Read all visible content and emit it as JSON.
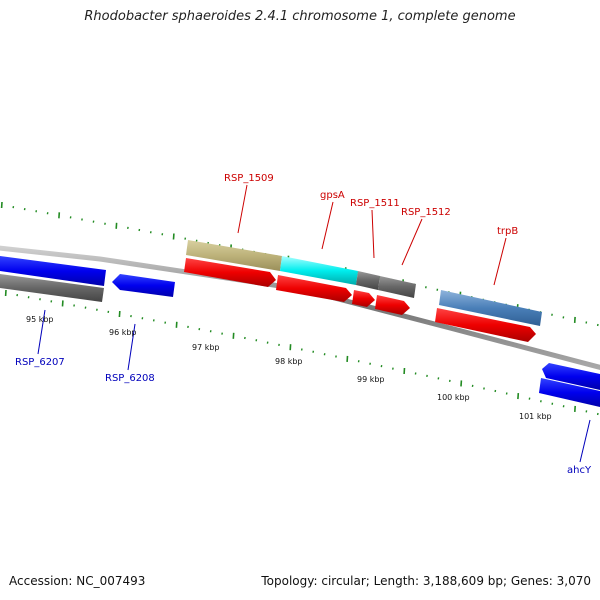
{
  "title": "Rhodobacter sphaeroides 2.4.1 chromosome 1, complete genome",
  "footer": {
    "accession": "Accession: NC_007493",
    "summary": "Topology: circular; Length: 3,188,609 bp; Genes: 3,070"
  },
  "colors": {
    "forward_arrow": "#ff0000",
    "reverse_arrow": "#0000ff",
    "backbone": "#888888",
    "tick": "#228b22",
    "forward_label": "#cc0000",
    "reverse_label": "#0000bb"
  },
  "scale_labels": [
    "95 kbp",
    "96 kbp",
    "97 kbp",
    "98 kbp",
    "99 kbp",
    "100 kbp",
    "101 kbp"
  ],
  "forward_genes": [
    "RSP_1509",
    "gpsA",
    "RSP_1511",
    "RSP_1512",
    "trpB"
  ],
  "reverse_genes": [
    "RSP_6207",
    "RSP_6208",
    "ahcY"
  ]
}
